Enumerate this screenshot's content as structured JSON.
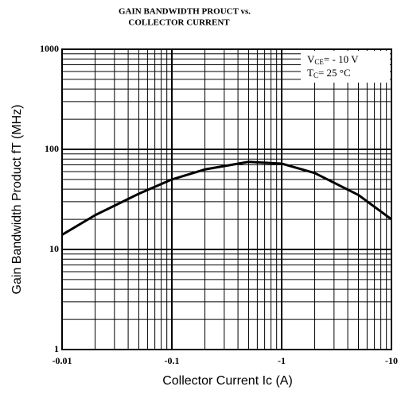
{
  "chart_data": {
    "type": "line",
    "title": [
      "GAIN BANDWIDTH PROUCT vs.",
      "COLLECTOR CURRENT"
    ],
    "xlabel": "Collector Current Ic (A)",
    "ylabel": "Gain Bandwidth Product fT (MHz)",
    "annotations": [
      {
        "symbol": "V",
        "sub": "CE",
        "text": "= - 10 V"
      },
      {
        "symbol": "T",
        "sub": "C",
        "text": "= 25 °C"
      }
    ],
    "xscale": "log",
    "yscale": "log",
    "grid": true,
    "xlim": [
      -0.01,
      -10
    ],
    "ylim": [
      1,
      1000
    ],
    "xticks": [
      -0.01,
      -0.1,
      -1,
      -10
    ],
    "yticks": [
      1,
      10,
      100,
      1000
    ],
    "xminorticks": [
      -0.02,
      -0.03,
      -0.04,
      -0.05,
      -0.06,
      -0.07,
      -0.08,
      -0.09,
      -0.2,
      -0.3,
      -0.4,
      -0.5,
      -0.6,
      -0.7,
      -0.8,
      -0.9,
      -2,
      -3,
      -4,
      -5,
      -6,
      -7,
      -8,
      -9
    ],
    "yminorticks": [
      2,
      3,
      4,
      5,
      6,
      7,
      8,
      9,
      20,
      30,
      40,
      50,
      60,
      70,
      80,
      90,
      200,
      300,
      400,
      500,
      600,
      700,
      800,
      900
    ],
    "x": [
      -0.01,
      -0.02,
      -0.05,
      -0.1,
      -0.2,
      -0.5,
      -1,
      -2,
      -5,
      -10
    ],
    "series": [
      {
        "color": "#000000",
        "values": [
          14,
          22,
          36,
          50,
          63,
          75,
          72,
          58,
          35,
          20
        ]
      }
    ]
  }
}
